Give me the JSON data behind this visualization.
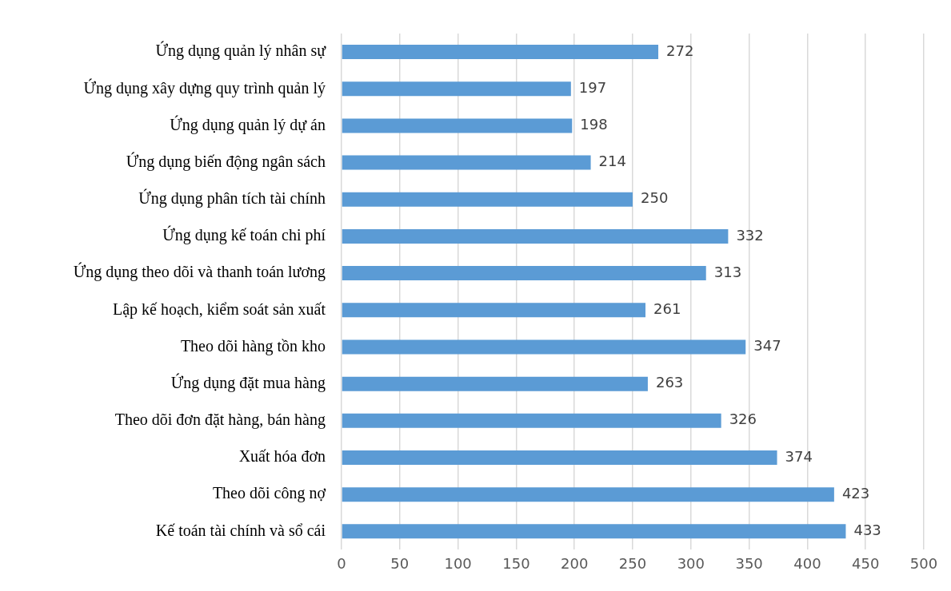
{
  "chart_data": {
    "type": "bar",
    "orientation": "horizontal",
    "categories": [
      "Ứng dụng quản lý nhân sự",
      "Ứng dụng xây dựng quy trình quản lý",
      "Ứng dụng quản lý dự án",
      "Ứng dụng biến động ngân sách",
      "Ứng dụng phân tích tài chính",
      "Ứng dụng kế toán chi phí",
      "Ứng dụng theo dõi và thanh toán lương",
      "Lập kế hoạch, kiểm soát sản xuất",
      "Theo dõi hàng tồn kho",
      "Ứng dụng đặt mua hàng",
      "Theo dõi đơn đặt hàng, bán hàng",
      "Xuất hóa đơn",
      "Theo dõi công nợ",
      "Kế toán tài chính và sổ cái"
    ],
    "values": [
      272,
      197,
      198,
      214,
      250,
      332,
      313,
      261,
      347,
      263,
      326,
      374,
      423,
      433
    ],
    "color": "#5b9bd5",
    "xlim": [
      0,
      500
    ],
    "xticks": [
      0,
      50,
      100,
      150,
      200,
      250,
      300,
      350,
      400,
      450,
      500
    ],
    "grid": "x",
    "data_labels": true,
    "legend": false
  }
}
